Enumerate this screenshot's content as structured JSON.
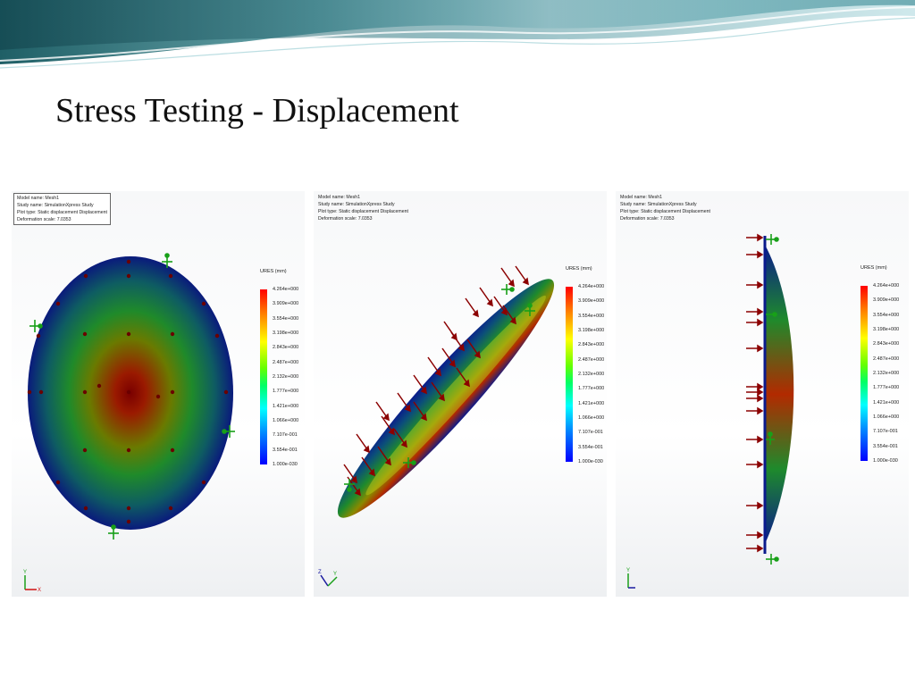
{
  "slide": {
    "title": "Stress Testing - Displacement"
  },
  "panels": [
    {
      "view": "front",
      "info": {
        "model": "Model name: Mesh1",
        "study": "Study name: SimulationXpress Study",
        "plot_type": "Plot type: Static displacement Displacement",
        "deformation": "Deformation scale: 7.0353"
      },
      "legend": {
        "title": "URES (mm)",
        "labels": [
          "4.264e+000",
          "3.909e+000",
          "3.554e+000",
          "3.198e+000",
          "2.843e+000",
          "2.487e+000",
          "2.132e+000",
          "1.777e+000",
          "1.421e+000",
          "1.066e+000",
          "7.107e-001",
          "3.554e-001",
          "1.000e-030"
        ]
      },
      "triad": {
        "v": "Y",
        "h": "X"
      }
    },
    {
      "view": "isometric",
      "info": {
        "model": "Model name: Mesh1",
        "study": "Study name: SimulationXpress Study",
        "plot_type": "Plot type: Static displacement Displacement",
        "deformation": "Deformation scale: 7.0353"
      },
      "legend": {
        "title": "URES (mm)",
        "labels": [
          "4.264e+000",
          "3.909e+000",
          "3.554e+000",
          "3.198e+000",
          "2.843e+000",
          "2.487e+000",
          "2.132e+000",
          "1.777e+000",
          "1.421e+000",
          "1.066e+000",
          "7.107e-001",
          "3.554e-001",
          "1.000e-030"
        ]
      },
      "triad": {
        "v": "Z",
        "h": "Y"
      }
    },
    {
      "view": "side",
      "info": {
        "model": "Model name: Mesh1",
        "study": "Study name: SimulationXpress Study",
        "plot_type": "Plot type: Static displacement Displacement",
        "deformation": "Deformation scale: 7.0353"
      },
      "legend": {
        "title": "URES (mm)",
        "labels": [
          "4.264e+000",
          "3.909e+000",
          "3.554e+000",
          "3.198e+000",
          "2.843e+000",
          "2.487e+000",
          "2.132e+000",
          "1.777e+000",
          "1.421e+000",
          "1.066e+000",
          "7.107e-001",
          "3.554e-001",
          "1.000e-030"
        ]
      },
      "triad": {
        "v": "Y",
        "h": ""
      }
    }
  ],
  "colors": {
    "load_arrow": "#8b0000",
    "fixture": "#18a018",
    "max_disp": "#8b0000",
    "min_disp": "#0a1a8c"
  }
}
